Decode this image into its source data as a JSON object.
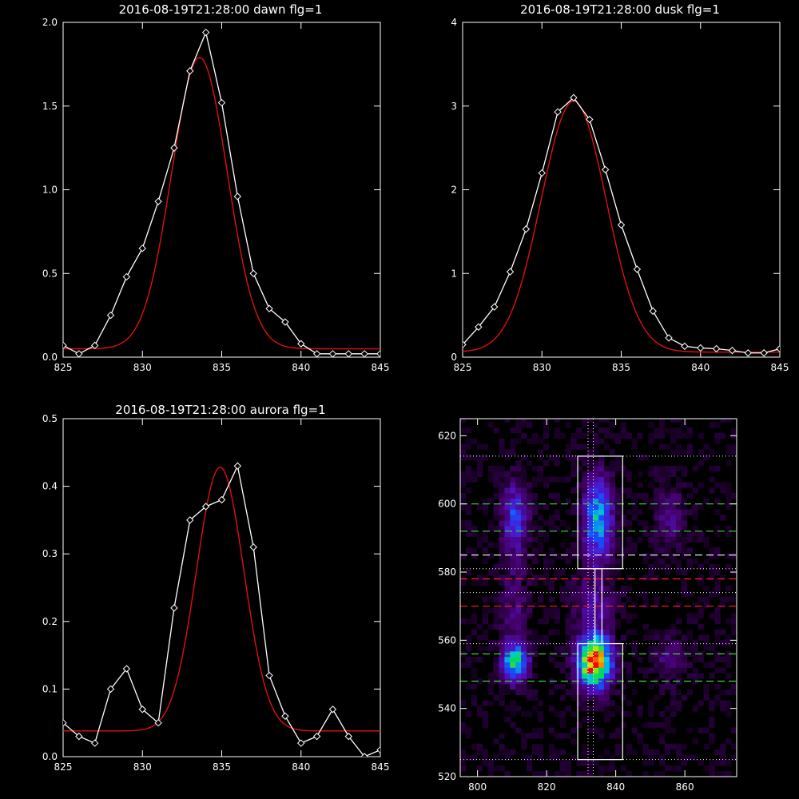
{
  "colors": {
    "background": "#000000",
    "axis": "#ffffff",
    "observed": "#ffffff",
    "fit": "#e01010",
    "dashed_green": "#3fd23f",
    "dashed_red": "#ff2020",
    "dashed_white": "#ffffff"
  },
  "chart_data": [
    {
      "type": "line",
      "title": "2016-08-19T21:28:00 dawn flg=1",
      "xlim": [
        825,
        845
      ],
      "ylim": [
        0,
        2.0
      ],
      "xticks": [
        825,
        830,
        835,
        840,
        845
      ],
      "yticks": [
        0.0,
        0.5,
        1.0,
        1.5,
        2.0
      ],
      "ytick_labels": [
        "0.0",
        "0.5",
        "1.0",
        "1.5",
        "2.0"
      ],
      "series": [
        {
          "role": "observed",
          "x": [
            825,
            826,
            827,
            828,
            829,
            830,
            831,
            832,
            833,
            834,
            835,
            836,
            837,
            838,
            839,
            840,
            841,
            842,
            843,
            844,
            845
          ],
          "y": [
            0.07,
            0.02,
            0.07,
            0.25,
            0.48,
            0.65,
            0.93,
            1.25,
            1.71,
            1.94,
            1.52,
            0.96,
            0.5,
            0.29,
            0.21,
            0.08,
            0.02,
            0.02,
            0.02,
            0.02,
            0.02
          ]
        },
        {
          "role": "fit",
          "model": "gaussian",
          "amplitude": 1.74,
          "center": 833.6,
          "sigma": 1.75,
          "baseline": 0.05
        }
      ]
    },
    {
      "type": "line",
      "title": "2016-08-19T21:28:00 dusk flg=1",
      "xlim": [
        825,
        845
      ],
      "ylim": [
        0,
        4
      ],
      "xticks": [
        825,
        830,
        835,
        840,
        845
      ],
      "yticks": [
        0,
        1,
        2,
        3,
        4
      ],
      "ytick_labels": [
        "0",
        "1",
        "2",
        "3",
        "4"
      ],
      "series": [
        {
          "role": "observed",
          "x": [
            825,
            826,
            827,
            828,
            829,
            830,
            831,
            832,
            833,
            834,
            835,
            836,
            837,
            838,
            839,
            840,
            841,
            842,
            843,
            844,
            845
          ],
          "y": [
            0.15,
            0.36,
            0.6,
            1.02,
            1.53,
            2.2,
            2.93,
            3.1,
            2.84,
            2.24,
            1.58,
            1.05,
            0.55,
            0.23,
            0.13,
            0.11,
            0.1,
            0.08,
            0.05,
            0.05,
            0.1
          ]
        },
        {
          "role": "fit",
          "model": "gaussian",
          "amplitude": 3.0,
          "center": 832.0,
          "sigma": 2.05,
          "baseline": 0.06
        }
      ]
    },
    {
      "type": "line",
      "title": "2016-08-19T21:28:00 aurora flg=1",
      "xlim": [
        825,
        845
      ],
      "ylim": [
        0,
        0.5
      ],
      "xticks": [
        825,
        830,
        835,
        840,
        845
      ],
      "yticks": [
        0.0,
        0.1,
        0.2,
        0.3,
        0.4,
        0.5
      ],
      "ytick_labels": [
        "0.0",
        "0.1",
        "0.2",
        "0.3",
        "0.4",
        "0.5"
      ],
      "series": [
        {
          "role": "observed",
          "x": [
            825,
            826,
            827,
            828,
            829,
            830,
            831,
            832,
            833,
            834,
            835,
            836,
            837,
            838,
            839,
            840,
            841,
            842,
            843,
            844,
            845
          ],
          "y": [
            0.05,
            0.03,
            0.02,
            0.1,
            0.13,
            0.07,
            0.05,
            0.22,
            0.35,
            0.37,
            0.38,
            0.43,
            0.31,
            0.12,
            0.06,
            0.02,
            0.03,
            0.07,
            0.03,
            0.0,
            0.01
          ]
        },
        {
          "role": "fit",
          "model": "gaussian",
          "amplitude": 0.39,
          "center": 834.9,
          "sigma": 1.5,
          "baseline": 0.038
        }
      ]
    },
    {
      "type": "heatmap",
      "title": "",
      "xlim": [
        795,
        875
      ],
      "ylim": [
        520,
        625
      ],
      "xticks": [
        800,
        820,
        840,
        860
      ],
      "yticks": [
        520,
        540,
        560,
        580,
        600,
        620
      ],
      "blobs": [
        {
          "x": 810,
          "y": 553,
          "sx": 2.5,
          "sy": 4,
          "peak": 0.55
        },
        {
          "x": 810,
          "y": 595,
          "sx": 2.5,
          "sy": 7,
          "peak": 0.32
        },
        {
          "x": 833,
          "y": 553,
          "sx": 3.2,
          "sy": 5,
          "peak": 1.0
        },
        {
          "x": 834,
          "y": 595,
          "sx": 2.8,
          "sy": 8,
          "peak": 0.48
        },
        {
          "x": 855,
          "y": 595,
          "sx": 3,
          "sy": 6,
          "peak": 0.14
        },
        {
          "x": 855,
          "y": 553,
          "sx": 3,
          "sy": 5,
          "peak": 0.12
        },
        {
          "x": 833,
          "y": 570,
          "sx": 4,
          "sy": 6,
          "peak": 0.16
        },
        {
          "x": 810,
          "y": 570,
          "sx": 3,
          "sy": 8,
          "peak": 0.12
        }
      ],
      "boxes": [
        {
          "x0": 829,
          "x1": 842,
          "y0": 581,
          "y1": 614
        },
        {
          "x0": 829,
          "x1": 842,
          "y0": 525,
          "y1": 559
        },
        {
          "x0": 834,
          "x1": 836,
          "y0": 559,
          "y1": 581
        }
      ],
      "hlines_dashed": [
        {
          "y": 600,
          "color": "green"
        },
        {
          "y": 592,
          "color": "green"
        },
        {
          "y": 585,
          "color": "white"
        },
        {
          "y": 578,
          "color": "red"
        },
        {
          "y": 570,
          "color": "red"
        },
        {
          "y": 556,
          "color": "green"
        },
        {
          "y": 548,
          "color": "green"
        }
      ],
      "hlines_dotted": [
        614,
        581,
        574,
        559,
        525
      ],
      "vlines_dotted": [
        832,
        833.5
      ]
    }
  ]
}
